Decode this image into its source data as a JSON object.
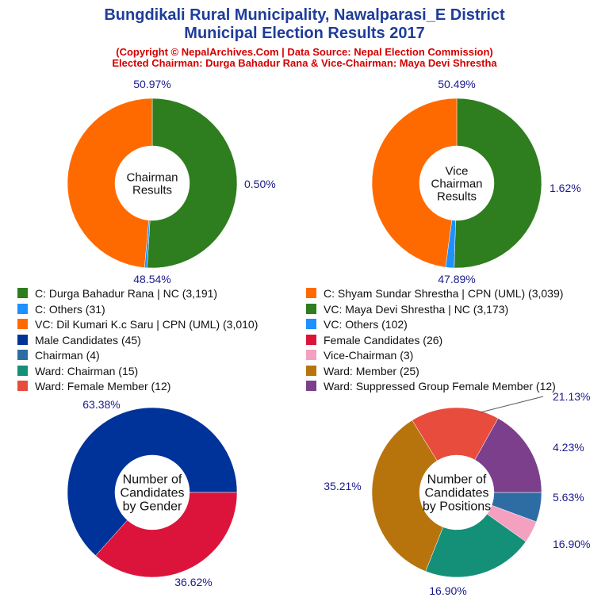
{
  "header": {
    "title_line1": "Bungdikali Rural Municipality, Nawalparasi_E District",
    "title_line2": "Municipal Election Results 2017",
    "subtitle_line1": "(Copyright © NepalArchives.Com | Data Source: Nepal Election Commission)",
    "subtitle_line2": "Elected Chairman: Durga Bahadur Rana & Vice-Chairman: Maya Devi Shrestha"
  },
  "chart_data": [
    {
      "type": "pie",
      "subtype": "donut",
      "center_label": [
        "Chairman",
        "Results"
      ],
      "slices": [
        {
          "label": "C: Durga Bahadur Rana | NC",
          "value": 3191,
          "percent_label": "50.97%",
          "color": "#2e7d1e"
        },
        {
          "label": "C: Others",
          "value": 31,
          "percent_label": "0.50%",
          "color": "#1e90ff"
        },
        {
          "label": "C: Shyam Sundar Shrestha | CPN (UML)",
          "value": 3039,
          "percent_label": "48.54%",
          "color": "#ff6a00"
        }
      ]
    },
    {
      "type": "pie",
      "subtype": "donut",
      "center_label": [
        "Vice",
        "Chairman",
        "Results"
      ],
      "slices": [
        {
          "label": "VC: Maya Devi Shrestha | NC",
          "value": 3173,
          "percent_label": "50.49%",
          "color": "#2e7d1e"
        },
        {
          "label": "VC: Others",
          "value": 102,
          "percent_label": "1.62%",
          "color": "#1e90ff"
        },
        {
          "label": "VC: Dil Kumari K.c Saru | CPN (UML)",
          "value": 3010,
          "percent_label": "47.89%",
          "color": "#ff6a00"
        }
      ]
    },
    {
      "type": "pie",
      "subtype": "donut",
      "center_label": [
        "Number of",
        "Candidates",
        "by Gender"
      ],
      "slices": [
        {
          "label": "Male Candidates",
          "value": 45,
          "percent_label": "63.38%",
          "color": "#003399"
        },
        {
          "label": "Female Candidates",
          "value": 26,
          "percent_label": "36.62%",
          "color": "#dc143c"
        }
      ]
    },
    {
      "type": "pie",
      "subtype": "donut",
      "center_label": [
        "Number of",
        "Candidates",
        "by Positions"
      ],
      "slices": [
        {
          "label": "Chairman",
          "value": 4,
          "percent_label": "5.63%",
          "color": "#2e6da4"
        },
        {
          "label": "Vice-Chairman",
          "value": 3,
          "percent_label": "4.23%",
          "color": "#f4a0c0"
        },
        {
          "label": "Ward: Chairman",
          "value": 15,
          "percent_label": "21.13%",
          "color": "#159078"
        },
        {
          "label": "Ward: Member",
          "value": 25,
          "percent_label": "35.21%",
          "color": "#b8740c"
        },
        {
          "label": "Ward: Female Member",
          "value": 12,
          "percent_label": "16.90%",
          "color": "#e84c3d"
        },
        {
          "label": "Ward: Suppressed Group Female Member",
          "value": 12,
          "percent_label": "16.90%",
          "color": "#7b3f8c"
        }
      ]
    }
  ],
  "legend": {
    "items": [
      {
        "text": "C: Durga Bahadur Rana | NC (3,191)",
        "color": "#2e7d1e"
      },
      {
        "text": "C: Shyam Sundar Shrestha | CPN (UML) (3,039)",
        "color": "#ff6a00"
      },
      {
        "text": "C: Others (31)",
        "color": "#1e90ff"
      },
      {
        "text": "VC: Maya Devi Shrestha | NC (3,173)",
        "color": "#2e7d1e"
      },
      {
        "text": "VC: Dil Kumari K.c Saru | CPN (UML) (3,010)",
        "color": "#ff6a00"
      },
      {
        "text": "VC: Others (102)",
        "color": "#1e90ff"
      },
      {
        "text": "Male Candidates (45)",
        "color": "#003399"
      },
      {
        "text": "Female Candidates (26)",
        "color": "#dc143c"
      },
      {
        "text": "Chairman (4)",
        "color": "#2e6da4"
      },
      {
        "text": "Vice-Chairman (3)",
        "color": "#f4a0c0"
      },
      {
        "text": "Ward: Chairman (15)",
        "color": "#159078"
      },
      {
        "text": "Ward: Member (25)",
        "color": "#b8740c"
      },
      {
        "text": "Ward: Female Member (12)",
        "color": "#e84c3d"
      },
      {
        "text": "Ward: Suppressed Group Female Member (12)",
        "color": "#7b3f8c"
      }
    ]
  },
  "colors": {
    "title": "#1f3d99",
    "subtitle": "#d40000",
    "percent_label": "#1a1a8c"
  }
}
